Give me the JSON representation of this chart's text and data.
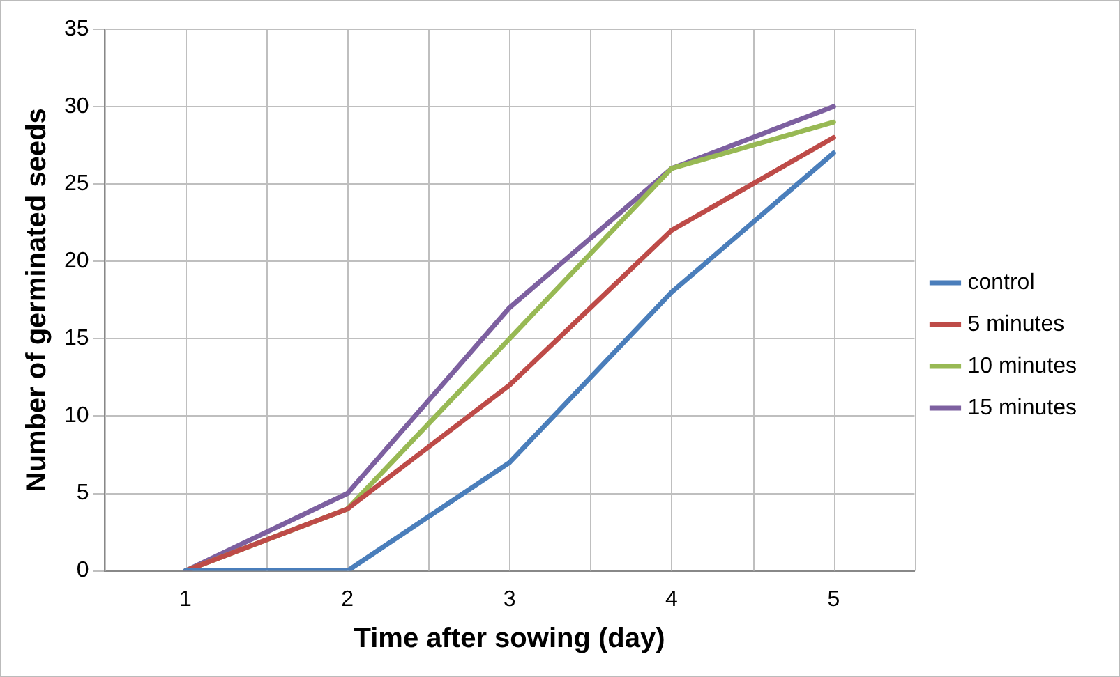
{
  "chart_data": {
    "type": "line",
    "xlabel": "Time after sowing (day)",
    "ylabel": "Number of germinated seeds",
    "categories": [
      "1",
      "2",
      "3",
      "4",
      "5"
    ],
    "series": [
      {
        "name": "control",
        "color": "#4a7ebb",
        "values": [
          0,
          0,
          7,
          18,
          27
        ]
      },
      {
        "name": "5 minutes",
        "color": "#be4b48",
        "values": [
          0,
          4,
          12,
          22,
          28
        ]
      },
      {
        "name": "10 minutes",
        "color": "#98b954",
        "values": [
          0,
          4,
          15,
          26,
          29
        ]
      },
      {
        "name": "15 minutes",
        "color": "#7d60a0",
        "values": [
          0,
          5,
          17,
          26,
          30
        ]
      }
    ],
    "ylim": [
      0,
      35
    ],
    "yticks": [
      0,
      5,
      10,
      15,
      20,
      25,
      30,
      35
    ],
    "grid": true,
    "legend": "right",
    "marker": "none",
    "line_style": "solid"
  }
}
